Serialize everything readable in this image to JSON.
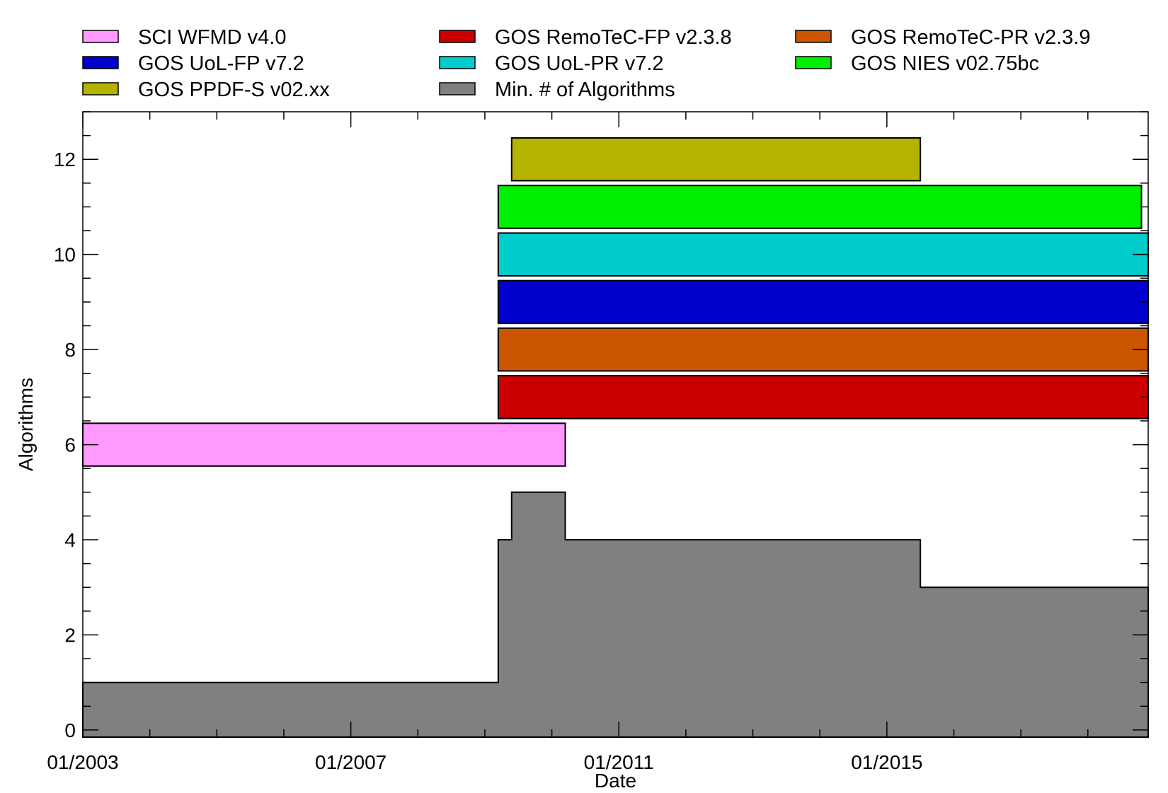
{
  "chart_data": {
    "type": "bar",
    "subtype": "horizontal-timeline-with-step-area",
    "title": "",
    "xlabel": "Date",
    "ylabel": "Algorithms",
    "x_unit": "year",
    "xlim": [
      2003.0,
      2018.9
    ],
    "ylim": [
      -0.15,
      13.0
    ],
    "x_ticks": [
      {
        "value": 2003,
        "label": "01/2003"
      },
      {
        "value": 2007,
        "label": "01/2007"
      },
      {
        "value": 2011,
        "label": "01/2011"
      },
      {
        "value": 2015,
        "label": "01/2015"
      }
    ],
    "x_minor_ticks": [
      2004,
      2005,
      2006,
      2008,
      2009,
      2010,
      2012,
      2013,
      2014,
      2016,
      2017,
      2018
    ],
    "y_ticks": [
      0,
      2,
      4,
      6,
      8,
      10,
      12
    ],
    "y_minor_step": 0.5,
    "grid": false,
    "legend_position": "top",
    "series": [
      {
        "name": "SCI WFMD v4.0",
        "color": "#ff99ff",
        "level": 6,
        "start": 2003.0,
        "end": 2010.2
      },
      {
        "name": "GOS RemoTeC-FP v2.3.8",
        "color": "#cc0000",
        "level": 7,
        "start": 2009.2,
        "end": 2018.9
      },
      {
        "name": "GOS RemoTeC-PR v2.3.9",
        "color": "#cc5500",
        "level": 8,
        "start": 2009.2,
        "end": 2018.9
      },
      {
        "name": "GOS UoL-FP v7.2",
        "color": "#0000cc",
        "level": 9,
        "start": 2009.2,
        "end": 2018.9
      },
      {
        "name": "GOS UoL-PR v7.2",
        "color": "#00cccc",
        "level": 10,
        "start": 2009.2,
        "end": 2018.9
      },
      {
        "name": "GOS NIES v02.75bc",
        "color": "#00ee00",
        "level": 11,
        "start": 2009.2,
        "end": 2018.8
      },
      {
        "name": "GOS PPDF-S v02.xx",
        "color": "#b3b300",
        "level": 12,
        "start": 2009.4,
        "end": 2015.5
      }
    ],
    "min_algorithms": {
      "name": "Min. # of Algorithms",
      "color": "#808080",
      "steps": [
        {
          "start": 2003.0,
          "end": 2009.2,
          "value": 1
        },
        {
          "start": 2009.2,
          "end": 2009.4,
          "value": 4
        },
        {
          "start": 2009.4,
          "end": 2010.2,
          "value": 5
        },
        {
          "start": 2010.2,
          "end": 2015.5,
          "value": 4
        },
        {
          "start": 2015.5,
          "end": 2018.9,
          "value": 3
        }
      ]
    },
    "legend": [
      [
        "SCI WFMD v4.0",
        "GOS RemoTeC-FP v2.3.8",
        "GOS RemoTeC-PR v2.3.9"
      ],
      [
        "GOS UoL-FP v7.2",
        "GOS UoL-PR v7.2",
        "GOS NIES v02.75bc"
      ],
      [
        "GOS PPDF-S v02.xx",
        "Min. # of Algorithms"
      ]
    ]
  }
}
